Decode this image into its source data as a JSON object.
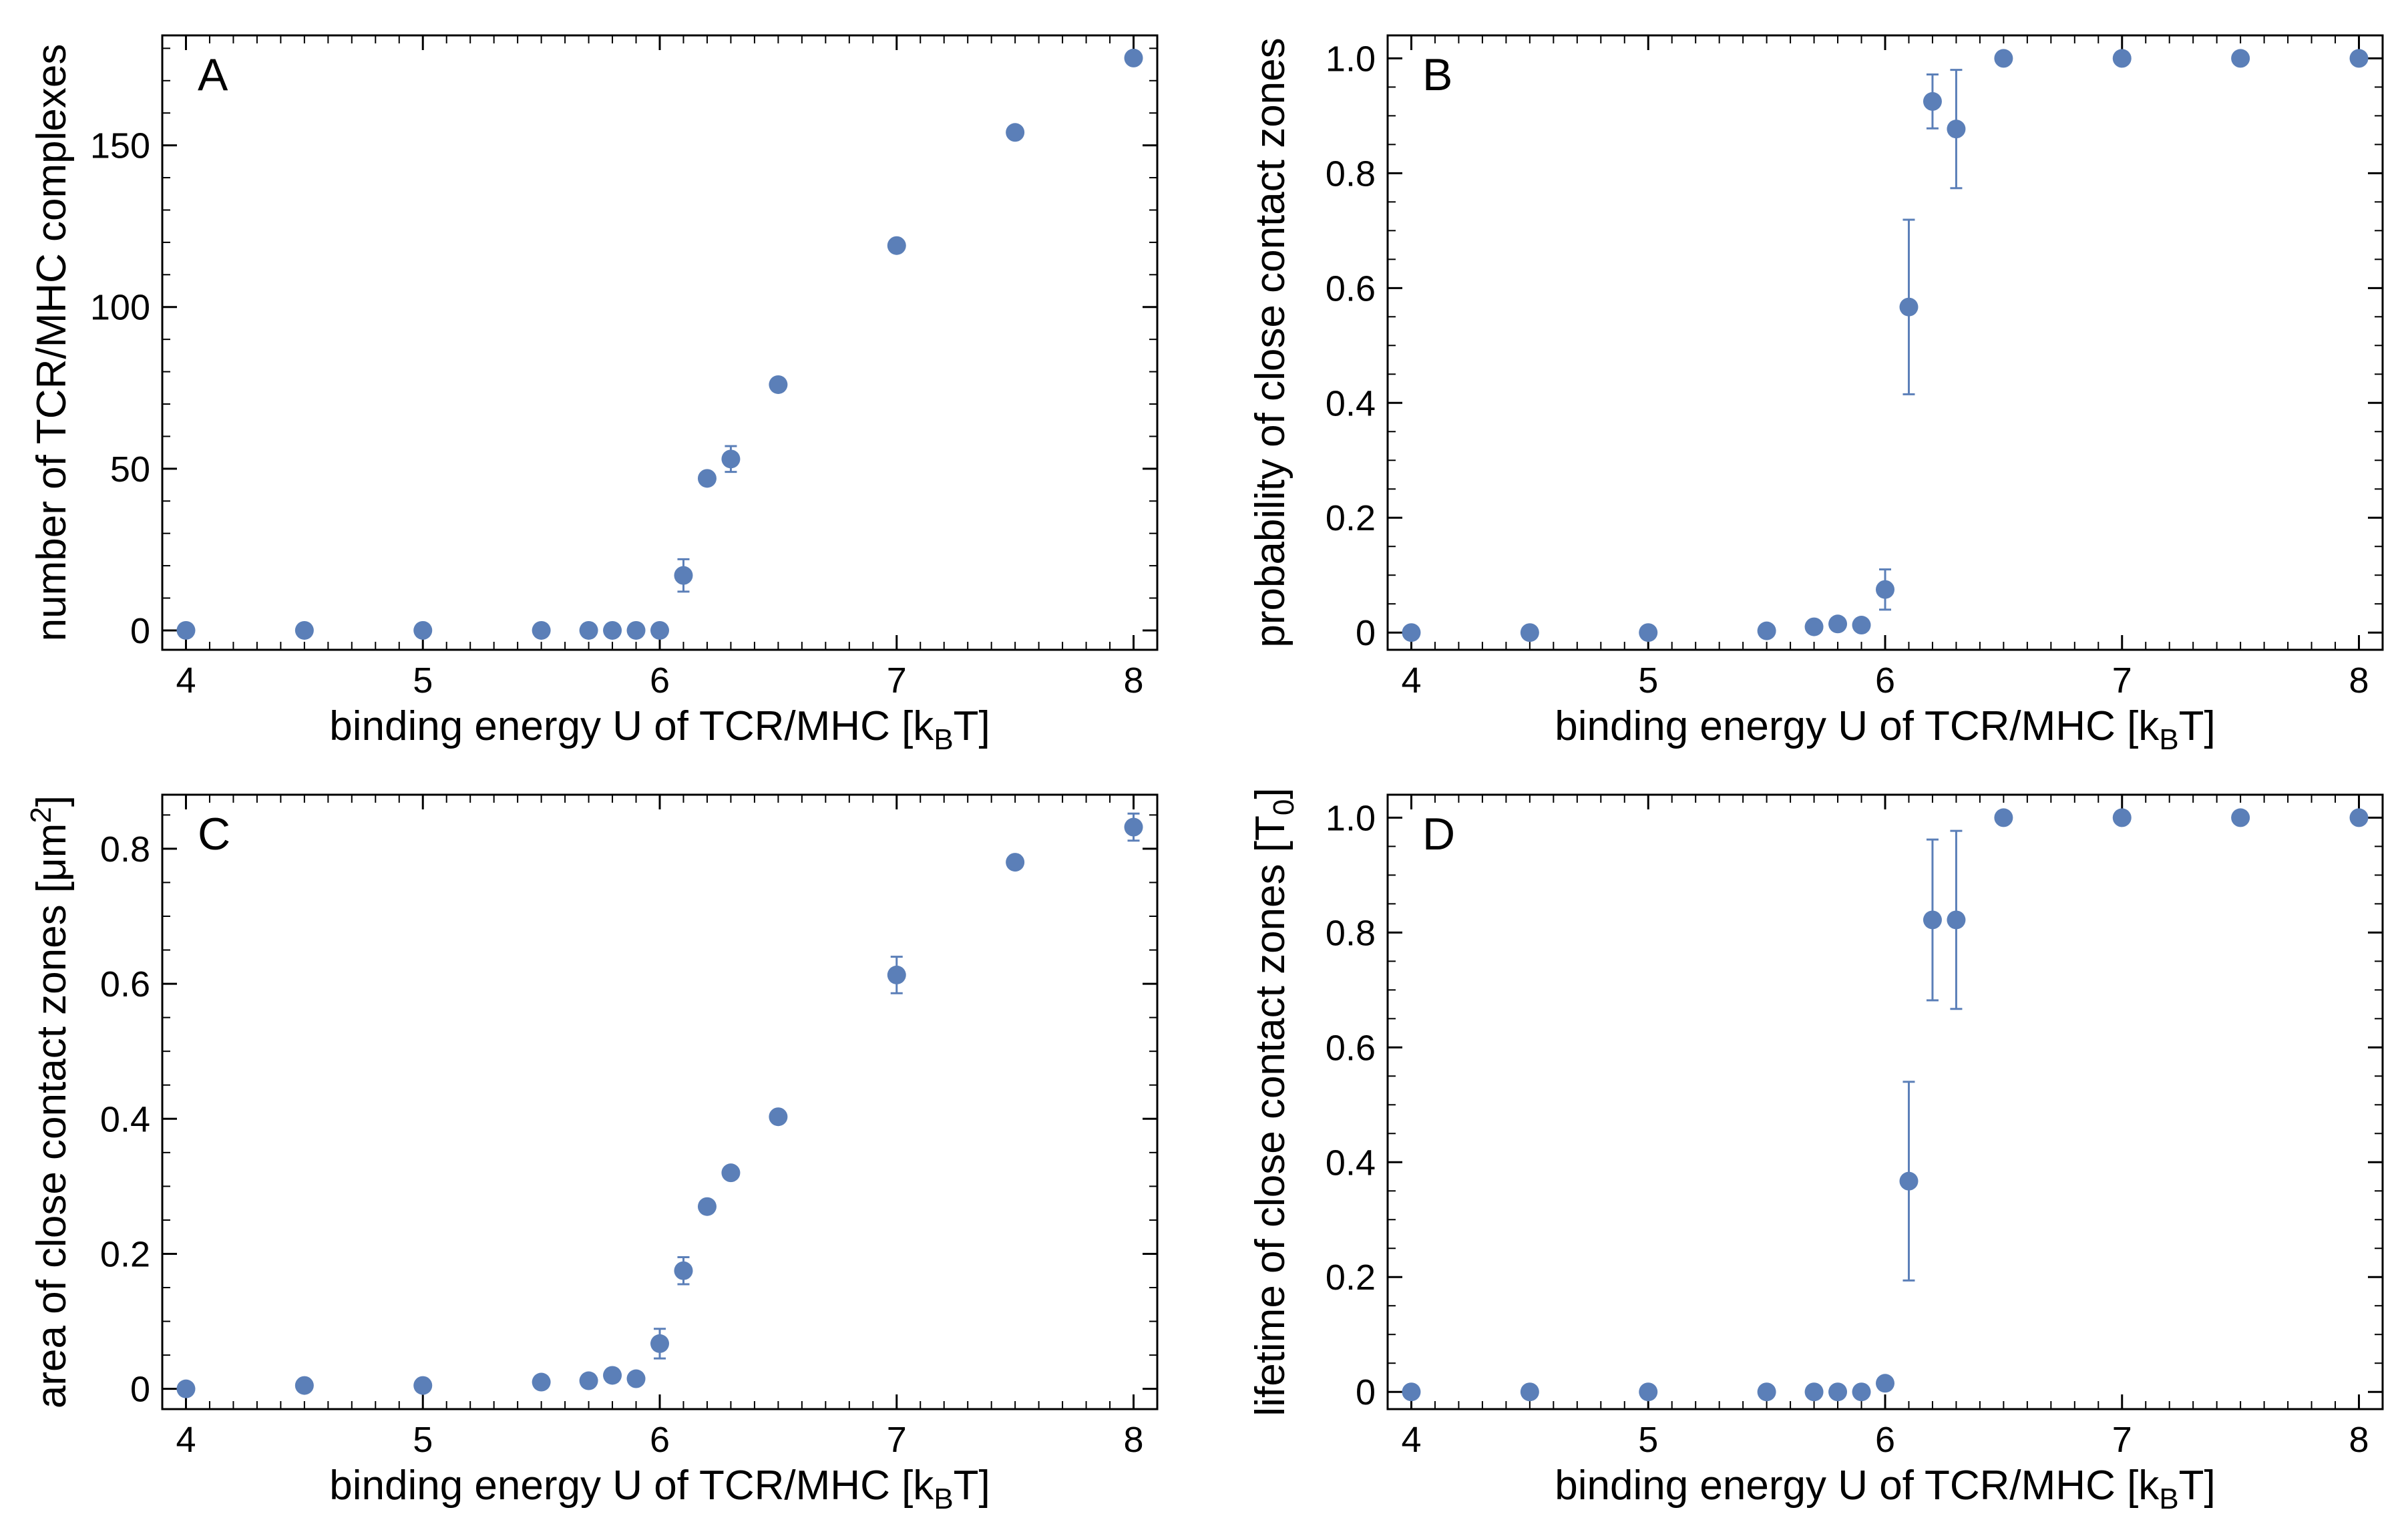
{
  "figure": {
    "marker_color": "#5b7fb8",
    "axis_color": "#000000"
  },
  "chart_data": [
    {
      "type": "scatter",
      "panel_label": "A",
      "xlabel": {
        "main": "binding energy U of TCR/MHC [k",
        "sub": "B",
        "tail": "T]"
      },
      "ylabel": {
        "main": "number of TCR/MHC complexes"
      },
      "xlim": [
        3.9,
        8.1
      ],
      "ylim": [
        -6,
        184
      ],
      "xticks": [
        4,
        5,
        6,
        7,
        8
      ],
      "xtick_labels": [
        "4",
        "5",
        "6",
        "7",
        "8"
      ],
      "yticks": [
        0,
        50,
        100,
        150
      ],
      "ytick_labels": [
        "0",
        "50",
        "100",
        "150"
      ],
      "yminor_step": 10,
      "x": [
        4,
        4.5,
        5,
        5.5,
        5.7,
        5.8,
        5.9,
        6,
        6.1,
        6.2,
        6.3,
        6.5,
        7,
        7.5,
        8
      ],
      "y": [
        0,
        0,
        0,
        0,
        0,
        0,
        0,
        0,
        17,
        47,
        53,
        76,
        119,
        154,
        177
      ],
      "err": [
        0,
        0,
        0,
        0,
        0,
        0,
        0,
        0,
        5,
        0,
        4,
        0,
        0,
        0,
        0
      ]
    },
    {
      "type": "scatter",
      "panel_label": "B",
      "xlabel": {
        "main": "binding energy U of TCR/MHC [k",
        "sub": "B",
        "tail": "T]"
      },
      "ylabel": {
        "main": "probability of close contact zones"
      },
      "xlim": [
        3.9,
        8.1
      ],
      "ylim": [
        -0.03,
        1.04
      ],
      "xticks": [
        4,
        5,
        6,
        7,
        8
      ],
      "xtick_labels": [
        "4",
        "5",
        "6",
        "7",
        "8"
      ],
      "yticks": [
        0,
        0.2,
        0.4,
        0.6,
        0.8,
        1.0
      ],
      "ytick_labels": [
        "0",
        "0.2",
        "0.4",
        "0.6",
        "0.8",
        "1.0"
      ],
      "yminor_step": 0.05,
      "x": [
        4,
        4.5,
        5,
        5.5,
        5.7,
        5.8,
        5.9,
        6,
        6.1,
        6.2,
        6.3,
        6.5,
        7,
        7.5,
        8
      ],
      "y": [
        0,
        0,
        0,
        0.003,
        0.01,
        0.015,
        0.013,
        0.075,
        0.567,
        0.925,
        0.877,
        1.0,
        1.0,
        1.0,
        1.0
      ],
      "err": [
        0,
        0,
        0,
        0,
        0,
        0,
        0,
        0.035,
        0.152,
        0.047,
        0.103,
        0,
        0,
        0,
        0
      ]
    },
    {
      "type": "scatter",
      "panel_label": "C",
      "xlabel": {
        "main": "binding energy U of TCR/MHC [k",
        "sub": "B",
        "tail": "T]"
      },
      "ylabel": {
        "main": "area of close contact zones [μm",
        "sup": "2",
        "tail": "]"
      },
      "xlim": [
        3.9,
        8.1
      ],
      "ylim": [
        -0.03,
        0.88
      ],
      "xticks": [
        4,
        5,
        6,
        7,
        8
      ],
      "xtick_labels": [
        "4",
        "5",
        "6",
        "7",
        "8"
      ],
      "yticks": [
        0,
        0.2,
        0.4,
        0.6,
        0.8
      ],
      "ytick_labels": [
        "0",
        "0.2",
        "0.4",
        "0.6",
        "0.8"
      ],
      "yminor_step": 0.05,
      "x": [
        4,
        4.5,
        5,
        5.5,
        5.7,
        5.8,
        5.9,
        6,
        6.1,
        6.2,
        6.3,
        6.5,
        7,
        7.5,
        8
      ],
      "y": [
        0,
        0.005,
        0.005,
        0.01,
        0.012,
        0.02,
        0.015,
        0.067,
        0.175,
        0.27,
        0.32,
        0.403,
        0.613,
        0.78,
        0.832
      ],
      "err": [
        0,
        0,
        0,
        0,
        0,
        0,
        0,
        0.022,
        0.02,
        0,
        0,
        0,
        0.027,
        0,
        0.02
      ]
    },
    {
      "type": "scatter",
      "panel_label": "D",
      "xlabel": {
        "main": "binding energy U of TCR/MHC [k",
        "sub": "B",
        "tail": "T]"
      },
      "ylabel": {
        "main": "lifetime of close contact zones [T",
        "sub": "0",
        "tail": "]"
      },
      "xlim": [
        3.9,
        8.1
      ],
      "ylim": [
        -0.03,
        1.04
      ],
      "xticks": [
        4,
        5,
        6,
        7,
        8
      ],
      "xtick_labels": [
        "4",
        "5",
        "6",
        "7",
        "8"
      ],
      "yticks": [
        0,
        0.2,
        0.4,
        0.6,
        0.8,
        1.0
      ],
      "ytick_labels": [
        "0",
        "0.2",
        "0.4",
        "0.6",
        "0.8",
        "1.0"
      ],
      "yminor_step": 0.05,
      "x": [
        4,
        4.5,
        5,
        5.5,
        5.7,
        5.8,
        5.9,
        6,
        6.1,
        6.2,
        6.3,
        6.5,
        7,
        7.5,
        8
      ],
      "y": [
        0,
        0,
        0,
        0,
        0,
        0,
        0,
        0.015,
        0.367,
        0.822,
        0.822,
        1.0,
        1.0,
        1.0,
        1.0
      ],
      "err": [
        0,
        0,
        0,
        0,
        0,
        0,
        0,
        0,
        0.173,
        0.14,
        0.155,
        0,
        0,
        0,
        0
      ]
    }
  ]
}
